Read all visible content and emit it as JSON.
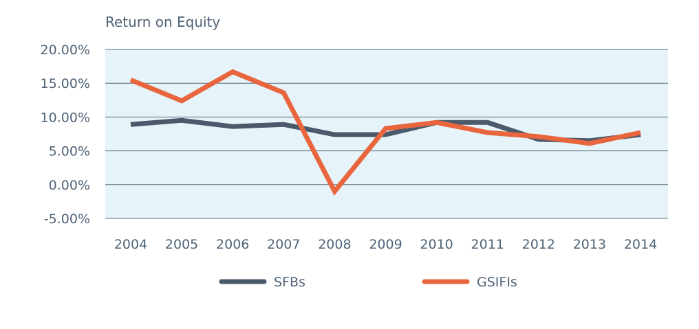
{
  "chart_data": {
    "type": "line",
    "title": "Return on Equity",
    "xlabel": "",
    "ylabel": "",
    "x": [
      "2004",
      "2005",
      "2006",
      "2007",
      "2008",
      "2009",
      "2010",
      "2011",
      "2012",
      "2013",
      "2014"
    ],
    "ylim": [
      -5,
      20
    ],
    "yticks": [
      20,
      15,
      10,
      5,
      0,
      -5
    ],
    "ytick_labels": [
      "20.00%",
      "15.00%",
      "10.00%",
      "5.00%",
      "0.00%",
      "-5.00%"
    ],
    "grid": true,
    "legend_position": "bottom",
    "plot_background": "#e6f3f8",
    "series": [
      {
        "name": "SFBs",
        "color": "#4a5a6a",
        "values": [
          8.9,
          9.5,
          8.6,
          8.9,
          7.4,
          7.4,
          9.2,
          9.2,
          6.7,
          6.5,
          7.4
        ]
      },
      {
        "name": "GSIFIs",
        "color": "#e8653e",
        "values": [
          15.5,
          12.4,
          16.7,
          13.6,
          -1.0,
          8.3,
          9.2,
          7.7,
          7.1,
          6.1,
          7.7
        ]
      }
    ]
  }
}
